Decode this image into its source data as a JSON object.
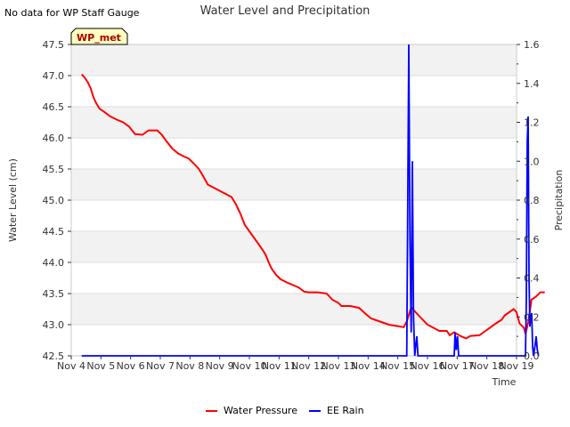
{
  "chart_data": {
    "type": "line",
    "title": "Water Level and Precipitation",
    "note": "No data for WP Staff Gauge",
    "badge": "WP_met",
    "xlabel": "Time",
    "ylabel_left": "Water Level (cm)",
    "ylabel_right": "Precipitation",
    "x_ticks": [
      "Nov 4",
      "Nov 5",
      "Nov 6",
      "Nov 7",
      "Nov 8",
      "Nov 9",
      "Nov 10",
      "Nov 11",
      "Nov 12",
      "Nov 13",
      "Nov 14",
      "Nov 15",
      "Nov 16",
      "Nov 17",
      "Nov 18",
      "Nov 19"
    ],
    "xlim_days": [
      4,
      19
    ],
    "ylim_left": [
      42.5,
      47.5
    ],
    "yticks_left": [
      "42.5",
      "43.0",
      "43.5",
      "44.0",
      "44.5",
      "45.0",
      "45.5",
      "46.0",
      "46.5",
      "47.0",
      "47.5"
    ],
    "ylim_right": [
      0.0,
      1.6
    ],
    "yticks_right": [
      "0.0",
      "0.2",
      "0.4",
      "0.6",
      "0.8",
      "1.0",
      "1.2",
      "1.4",
      "1.6"
    ],
    "grid": "horizontal banded",
    "legend_position": "bottom-center",
    "series": [
      {
        "name": "Water Pressure",
        "color": "#ff0000",
        "axis": "left",
        "points": [
          [
            4.35,
            47.02
          ],
          [
            4.45,
            46.97
          ],
          [
            4.55,
            46.9
          ],
          [
            4.65,
            46.8
          ],
          [
            4.75,
            46.65
          ],
          [
            4.85,
            46.55
          ],
          [
            4.95,
            46.47
          ],
          [
            5.1,
            46.42
          ],
          [
            5.3,
            46.35
          ],
          [
            5.5,
            46.3
          ],
          [
            5.75,
            46.25
          ],
          [
            5.95,
            46.18
          ],
          [
            6.05,
            46.12
          ],
          [
            6.15,
            46.06
          ],
          [
            6.4,
            46.05
          ],
          [
            6.6,
            46.12
          ],
          [
            6.9,
            46.12
          ],
          [
            7.05,
            46.05
          ],
          [
            7.2,
            45.95
          ],
          [
            7.4,
            45.83
          ],
          [
            7.6,
            45.75
          ],
          [
            7.8,
            45.7
          ],
          [
            7.95,
            45.67
          ],
          [
            8.1,
            45.6
          ],
          [
            8.3,
            45.5
          ],
          [
            8.45,
            45.38
          ],
          [
            8.6,
            45.25
          ],
          [
            8.8,
            45.2
          ],
          [
            9.0,
            45.15
          ],
          [
            9.2,
            45.1
          ],
          [
            9.4,
            45.05
          ],
          [
            9.55,
            44.93
          ],
          [
            9.7,
            44.78
          ],
          [
            9.85,
            44.6
          ],
          [
            10.0,
            44.5
          ],
          [
            10.15,
            44.4
          ],
          [
            10.3,
            44.3
          ],
          [
            10.45,
            44.2
          ],
          [
            10.55,
            44.12
          ],
          [
            10.65,
            44.0
          ],
          [
            10.75,
            43.9
          ],
          [
            10.9,
            43.8
          ],
          [
            11.05,
            43.73
          ],
          [
            11.3,
            43.67
          ],
          [
            11.65,
            43.6
          ],
          [
            11.85,
            43.53
          ],
          [
            12.0,
            43.52
          ],
          [
            12.3,
            43.52
          ],
          [
            12.6,
            43.5
          ],
          [
            12.8,
            43.4
          ],
          [
            13.0,
            43.35
          ],
          [
            13.1,
            43.3
          ],
          [
            13.4,
            43.3
          ],
          [
            13.7,
            43.27
          ],
          [
            13.9,
            43.18
          ],
          [
            14.1,
            43.1
          ],
          [
            14.4,
            43.05
          ],
          [
            14.7,
            43.0
          ],
          [
            14.95,
            42.98
          ],
          [
            15.2,
            42.96
          ],
          [
            15.3,
            43.05
          ],
          [
            15.45,
            43.28
          ],
          [
            15.6,
            43.2
          ],
          [
            15.8,
            43.1
          ],
          [
            16.0,
            43.0
          ],
          [
            16.2,
            42.95
          ],
          [
            16.4,
            42.9
          ],
          [
            16.65,
            42.9
          ],
          [
            16.75,
            42.83
          ],
          [
            16.9,
            42.88
          ],
          [
            17.0,
            42.85
          ],
          [
            17.1,
            42.82
          ],
          [
            17.3,
            42.78
          ],
          [
            17.45,
            42.82
          ],
          [
            17.75,
            42.83
          ],
          [
            17.95,
            42.9
          ],
          [
            18.1,
            42.95
          ],
          [
            18.3,
            43.02
          ],
          [
            18.5,
            43.08
          ],
          [
            18.6,
            43.15
          ],
          [
            18.75,
            43.2
          ],
          [
            18.9,
            43.25
          ],
          [
            19.0,
            43.2
          ],
          [
            19.1,
            43.02
          ],
          [
            19.25,
            42.95
          ],
          [
            19.3,
            42.85
          ],
          [
            19.4,
            43.05
          ],
          [
            19.5,
            43.4
          ],
          [
            19.65,
            43.45
          ],
          [
            19.8,
            43.52
          ],
          [
            19.95,
            43.52
          ]
        ]
      },
      {
        "name": "EE Rain",
        "color": "#0000ff",
        "axis": "right",
        "points": [
          [
            4.35,
            0
          ],
          [
            15.3,
            0
          ],
          [
            15.34,
            0.9
          ],
          [
            15.37,
            1.6
          ],
          [
            15.41,
            0.6
          ],
          [
            15.45,
            0.12
          ],
          [
            15.49,
            1.0
          ],
          [
            15.53,
            0.2
          ],
          [
            15.57,
            0
          ],
          [
            15.6,
            0.05
          ],
          [
            15.64,
            0.1
          ],
          [
            15.68,
            0
          ],
          [
            16.9,
            0
          ],
          [
            16.93,
            0.12
          ],
          [
            16.97,
            0.03
          ],
          [
            17.01,
            0.1
          ],
          [
            17.05,
            0
          ],
          [
            19.3,
            0
          ],
          [
            19.33,
            0.3
          ],
          [
            19.36,
            1.1
          ],
          [
            19.39,
            1.23
          ],
          [
            19.42,
            0.4
          ],
          [
            19.45,
            0.15
          ],
          [
            19.48,
            0.2
          ],
          [
            19.51,
            0.22
          ],
          [
            19.54,
            0.05
          ],
          [
            19.57,
            0
          ],
          [
            19.62,
            0.05
          ],
          [
            19.66,
            0.1
          ],
          [
            19.7,
            0.03
          ],
          [
            19.74,
            0
          ]
        ]
      }
    ]
  }
}
